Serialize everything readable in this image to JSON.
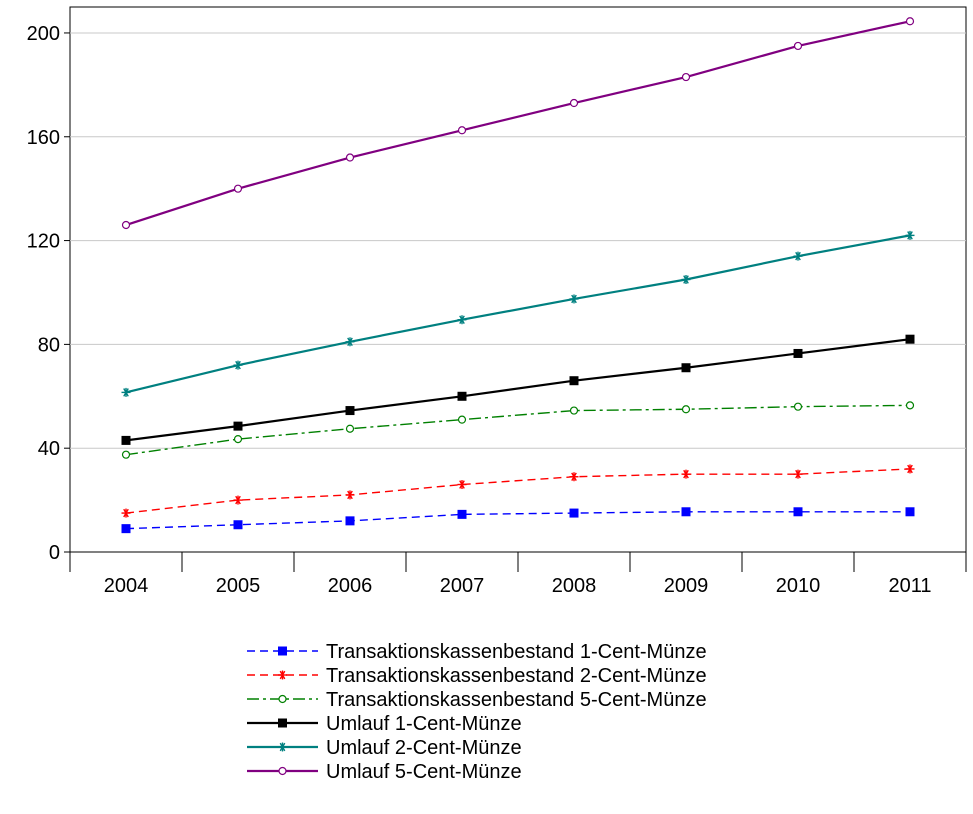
{
  "chart_data": {
    "type": "line",
    "x": [
      "2004",
      "2005",
      "2006",
      "2007",
      "2008",
      "2009",
      "2010",
      "2011"
    ],
    "ylim": [
      0,
      210
    ],
    "yticks": [
      0,
      40,
      80,
      120,
      160,
      200
    ],
    "grid": "horizontal",
    "legend_position": "bottom-center",
    "series": [
      {
        "name": "Transaktionskassenbestand 1-Cent-Münze",
        "values": [
          9,
          10.5,
          12,
          14.5,
          15,
          15.5,
          15.5,
          15.5
        ],
        "color": "#0000ff",
        "line_style": "dashed",
        "marker": "square"
      },
      {
        "name": "Transaktionskassenbestand 2-Cent-Münze",
        "values": [
          15,
          20,
          22,
          26,
          29,
          30,
          30,
          32
        ],
        "color": "#ff0000",
        "line_style": "dashed",
        "marker": "asterisk"
      },
      {
        "name": "Transaktionskassenbestand 5-Cent-Münze",
        "values": [
          37.5,
          43.5,
          47.5,
          51,
          54.5,
          55,
          56,
          56.5
        ],
        "color": "#008000",
        "line_style": "dash-dot",
        "marker": "circle"
      },
      {
        "name": "Umlauf 1-Cent-Münze",
        "values": [
          43,
          48.5,
          54.5,
          60,
          66,
          71,
          76.5,
          82
        ],
        "color": "#000000",
        "line_style": "solid",
        "marker": "square"
      },
      {
        "name": "Umlauf 2-Cent-Münze",
        "values": [
          61.5,
          72,
          81,
          89.5,
          97.5,
          105,
          114,
          122
        ],
        "color": "#008080",
        "line_style": "solid",
        "marker": "asterisk"
      },
      {
        "name": "Umlauf 5-Cent-Münze",
        "values": [
          126,
          140,
          152,
          162.5,
          173,
          183,
          195,
          204.5
        ],
        "color": "#800080",
        "line_style": "solid",
        "marker": "circle"
      }
    ]
  }
}
